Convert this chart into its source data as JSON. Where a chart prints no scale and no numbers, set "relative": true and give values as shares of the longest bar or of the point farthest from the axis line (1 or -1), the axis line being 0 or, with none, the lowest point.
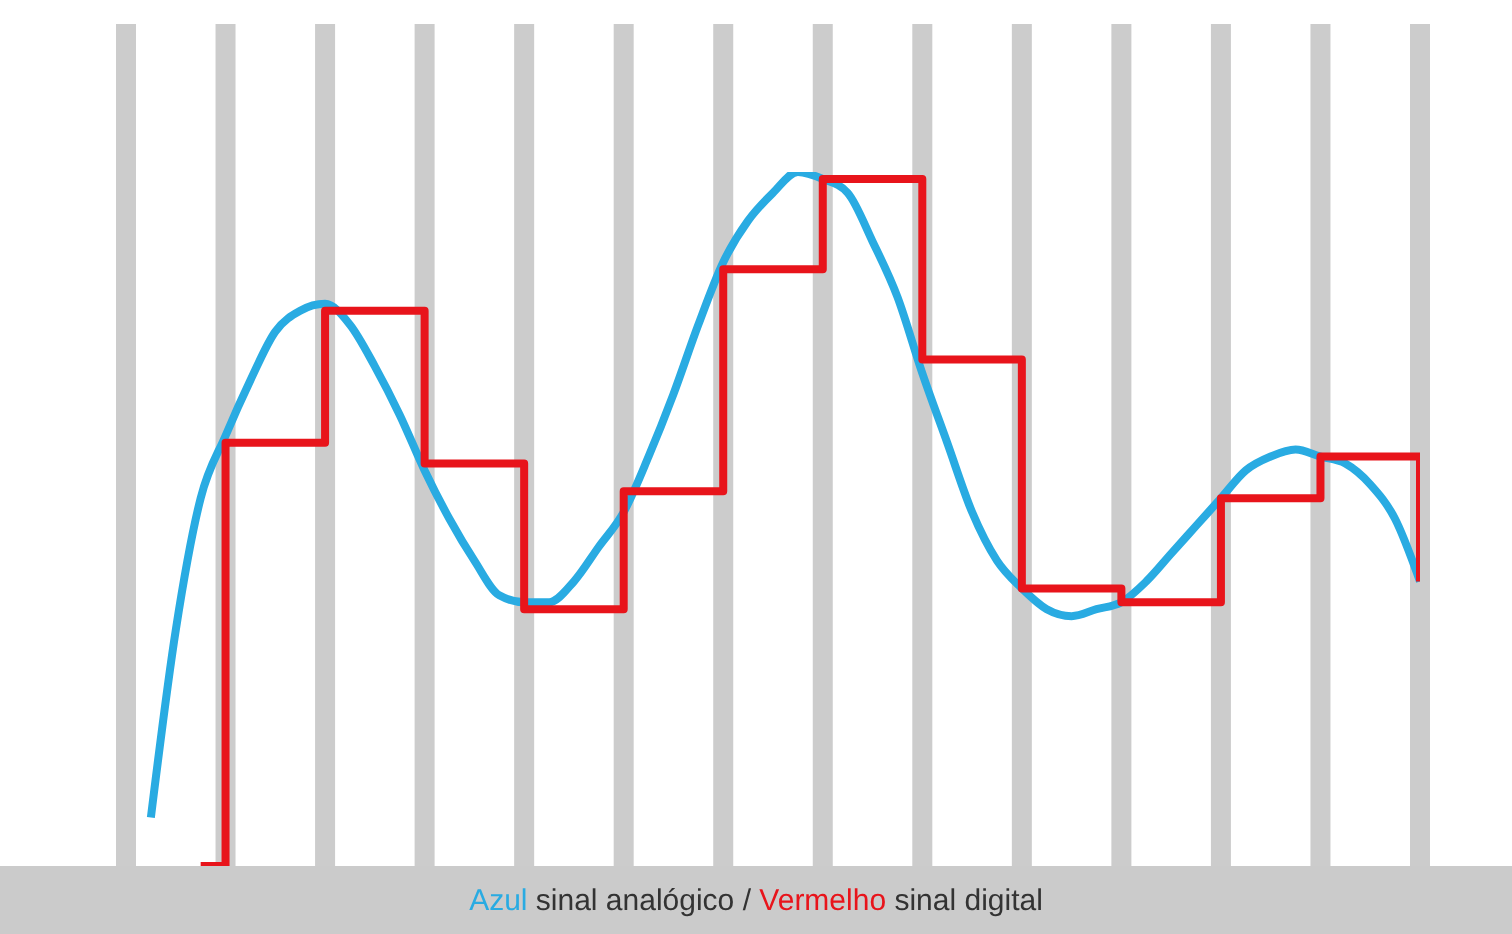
{
  "chart_data": {
    "type": "line",
    "relative": true,
    "categories": [
      null,
      null,
      null,
      null,
      null,
      null,
      null,
      null,
      null,
      null,
      null,
      null,
      null,
      null,
      null,
      null,
      null,
      null,
      null,
      null,
      null,
      null,
      null,
      null,
      null,
      null,
      null,
      null,
      null,
      null,
      null,
      null,
      null,
      null,
      null,
      null,
      null,
      null,
      null,
      null,
      null,
      null,
      null,
      null,
      null,
      null,
      null,
      null,
      null,
      null,
      null,
      null,
      null
    ],
    "series": [
      {
        "name": "Azul sinal analógico",
        "color": "#29abe2",
        "values": [
          null,
          0.07,
          0.34,
          0.53,
          0.62,
          0.7,
          0.77,
          0.8,
          0.81,
          0.78,
          0.72,
          0.65,
          0.57,
          0.5,
          0.44,
          0.39,
          0.38,
          0.38,
          0.41,
          0.46,
          0.51,
          0.59,
          0.68,
          0.78,
          0.87,
          0.93,
          0.97,
          1.0,
          0.99,
          0.97,
          0.9,
          0.82,
          0.71,
          0.61,
          0.51,
          0.44,
          0.4,
          0.37,
          0.36,
          0.37,
          0.38,
          0.41,
          0.45,
          0.49,
          0.53,
          0.57,
          0.59,
          0.6,
          0.59,
          0.58,
          0.55,
          0.5,
          0.41
        ]
      },
      {
        "name": "Vermelho sinal digital",
        "type": "step",
        "color": "#e8141b",
        "values": [
          null,
          null,
          null,
          0,
          0.61,
          null,
          null,
          null,
          0.8,
          null,
          null,
          null,
          0.58,
          null,
          null,
          null,
          0.37,
          null,
          null,
          null,
          0.54,
          null,
          null,
          null,
          0.86,
          null,
          null,
          null,
          0.99,
          null,
          null,
          null,
          0.73,
          null,
          null,
          null,
          0.4,
          null,
          null,
          null,
          0.38,
          null,
          null,
          null,
          0.53,
          null,
          null,
          null,
          0.59,
          null,
          null,
          null,
          0.41
        ]
      }
    ],
    "annotations": [
      "/"
    ],
    "grid": "x",
    "legend": "bottom",
    "marker": "none"
  }
}
